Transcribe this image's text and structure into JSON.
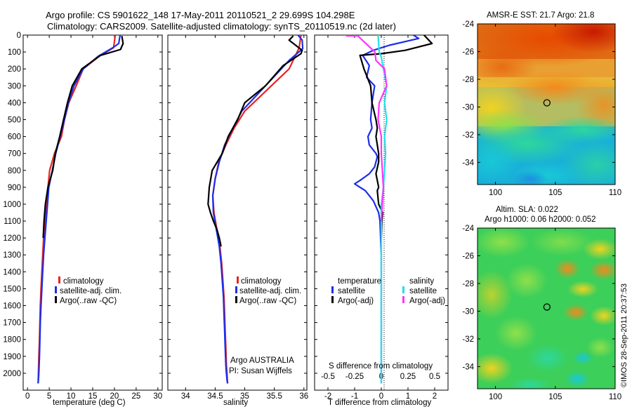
{
  "header": {
    "line1": "Argo profile: CS 5901622_148 17-May-2011 20110521_2 29.699S 104.298E",
    "line2": "Climatology: CARS2009. Satellite-adjusted climatology: synTS_20110519.nc (2d later)"
  },
  "colors": {
    "climatology": "#e8231e",
    "satellite_temperature": "#1c2ee8",
    "argo_temperature": "#000000",
    "satellite_salinity": "#22e0e8",
    "argo_salinity": "#ff33ff"
  },
  "chart_data": [
    {
      "type": "line",
      "ylabel": "",
      "xlabel": "temperature (deg C)",
      "xlim": [
        -1,
        31
      ],
      "ylim": [
        0,
        2100
      ],
      "y_reversed": true,
      "xticks": [
        "0",
        "5",
        "10",
        "15",
        "20",
        "25",
        "30"
      ],
      "yticks": [
        "0",
        "100",
        "200",
        "300",
        "400",
        "500",
        "600",
        "700",
        "800",
        "900",
        "1000",
        "1100",
        "1200",
        "1300",
        "1400",
        "1500",
        "1600",
        "1700",
        "1800",
        "1900",
        "2000"
      ],
      "legend": [
        "climatology",
        "satellite-adj. clim.",
        "Argo(..raw -QC)"
      ],
      "series": [
        {
          "name": "climatology",
          "color_key": "climatology",
          "x": [
            20.2,
            19.8,
            16.5,
            12.8,
            11.2,
            9.5,
            8.5,
            7.8,
            6.2,
            5.1,
            4.7,
            4.3,
            4.0,
            3.7,
            3.5,
            3.3,
            3.1,
            2.95,
            2.85,
            2.75,
            2.6,
            2.5,
            2.45
          ],
          "y": [
            0,
            75,
            125,
            200,
            300,
            400,
            500,
            600,
            700,
            800,
            900,
            1000,
            1100,
            1200,
            1300,
            1400,
            1500,
            1600,
            1700,
            1800,
            1900,
            2000,
            2060
          ]
        },
        {
          "name": "satellite-adj. clim.",
          "color_key": "satellite_temperature",
          "x": [
            21.3,
            21.0,
            19.6,
            16.3,
            12.8,
            10.7,
            9.4,
            8.5,
            7.5,
            6.5,
            5.7,
            4.9,
            4.6,
            4.3,
            4.0,
            3.7,
            3.5,
            3.3,
            3.1,
            2.95,
            2.85,
            2.75,
            2.6,
            2.5,
            2.45
          ],
          "y": [
            0,
            50,
            75,
            125,
            200,
            300,
            400,
            500,
            600,
            700,
            800,
            900,
            1000,
            1100,
            1200,
            1300,
            1400,
            1500,
            1600,
            1700,
            1800,
            1900,
            2000,
            2040,
            2060
          ]
        },
        {
          "name": "Argo(..raw -QC)",
          "color_key": "argo_temperature",
          "x": [
            21.7,
            22.0,
            21.4,
            16.8,
            12.5,
            10.3,
            9.2,
            8.3,
            7.4,
            6.4,
            5.8,
            4.7,
            4.1,
            3.8,
            3.6
          ],
          "y": [
            5,
            50,
            85,
            120,
            200,
            300,
            400,
            500,
            600,
            700,
            800,
            900,
            1000,
            1100,
            1200
          ]
        }
      ],
      "annotations": []
    },
    {
      "type": "line",
      "xlabel": "salinity",
      "xlim": [
        33.7,
        36.05
      ],
      "ylim": [
        0,
        2100
      ],
      "y_reversed": true,
      "xticks": [
        "34",
        "34.5",
        "35",
        "35.5",
        "36"
      ],
      "legend": [
        "climatology",
        "satellite-adj. clim.",
        "Argo(..raw -QC)"
      ],
      "series": [
        {
          "name": "climatology",
          "color_key": "climatology",
          "x": [
            35.95,
            35.92,
            35.75,
            35.3,
            35.0,
            34.82,
            34.68,
            34.56,
            34.5,
            34.46,
            34.48,
            34.53,
            34.58,
            34.61,
            34.63,
            34.65,
            34.66,
            34.67,
            34.68,
            34.69,
            34.7,
            34.71
          ],
          "y": [
            0,
            75,
            200,
            350,
            450,
            550,
            650,
            750,
            850,
            950,
            1050,
            1150,
            1250,
            1350,
            1450,
            1550,
            1650,
            1750,
            1850,
            1950,
            2000,
            2060
          ]
        },
        {
          "name": "satellite-adj. clim.",
          "color_key": "satellite_temperature",
          "x": [
            35.9,
            35.97,
            35.98,
            35.75,
            35.35,
            34.95,
            34.8,
            34.66,
            34.57,
            34.5,
            34.46,
            34.47,
            34.52,
            34.57,
            34.6,
            34.62,
            34.64,
            34.65,
            34.66,
            34.67,
            34.68,
            34.69,
            34.7,
            34.71
          ],
          "y": [
            0,
            30,
            80,
            150,
            300,
            450,
            550,
            650,
            750,
            850,
            950,
            1050,
            1150,
            1250,
            1350,
            1450,
            1550,
            1650,
            1750,
            1850,
            1950,
            2000,
            2040,
            2060
          ]
        },
        {
          "name": "Argo(..raw -QC)",
          "color_key": "argo_temperature",
          "x": [
            35.82,
            35.75,
            35.97,
            35.95,
            35.65,
            35.35,
            35.0,
            34.88,
            34.72,
            34.62,
            34.45,
            34.4,
            34.38,
            34.42,
            34.47,
            34.53,
            34.57,
            34.6
          ],
          "y": [
            5,
            30,
            90,
            110,
            180,
            300,
            400,
            500,
            600,
            700,
            800,
            900,
            1000,
            1050,
            1100,
            1150,
            1200,
            1250
          ]
        }
      ],
      "annotations": [
        "Argo AUSTRALIA",
        "PI: Susan Wijffels"
      ]
    },
    {
      "type": "line",
      "xlabel": "T difference from climatology",
      "x2label": "S difference from climatology",
      "xlim": [
        -2.5,
        2.5
      ],
      "x2lim": [
        -0.625,
        0.625
      ],
      "ylim": [
        0,
        2100
      ],
      "y_reversed": true,
      "xticks": [
        "-2",
        "-1",
        "0",
        "1",
        "2"
      ],
      "x2ticks": [
        "-0.5",
        "-0.25",
        "0",
        "0.25",
        "0.5"
      ],
      "legend_groups": [
        "temperature",
        "salinity"
      ],
      "legend": [
        "satellite",
        "Argo(-adj)",
        "satellite",
        "Argo(-adj)"
      ],
      "series": [
        {
          "name": "satellite",
          "group": "temperature",
          "color_key": "satellite_temperature",
          "x": [
            1.2,
            1.4,
            0.3,
            -0.3,
            -0.7,
            -0.45,
            -0.55,
            -0.25,
            -0.35,
            -0.4,
            -0.35,
            -0.5,
            -0.45,
            -0.2,
            -0.15,
            -0.2,
            -0.25,
            -0.35,
            -0.45,
            -0.8,
            -1.0,
            -0.6,
            -0.3,
            -0.1,
            -0.05,
            0.0,
            0.0
          ],
          "y": [
            0,
            20,
            60,
            90,
            120,
            180,
            250,
            300,
            400,
            500,
            550,
            600,
            650,
            700,
            720,
            750,
            780,
            800,
            820,
            860,
            880,
            920,
            980,
            1050,
            1100,
            1300,
            2060
          ]
        },
        {
          "name": "Argo(-adj)",
          "group": "temperature",
          "color_key": "argo_temperature",
          "x": [
            1.6,
            1.9,
            0.9,
            0.0,
            -0.8,
            -0.65,
            -0.4,
            -0.35,
            -0.2,
            -0.15,
            -0.2,
            -0.15,
            -0.1,
            -0.1,
            -0.2,
            -0.15,
            -0.1,
            -0.15,
            -0.1,
            0.05,
            0.02,
            0.0
          ],
          "y": [
            0,
            50,
            90,
            110,
            120,
            200,
            300,
            400,
            500,
            550,
            600,
            650,
            700,
            750,
            820,
            860,
            900,
            920,
            1000,
            1050,
            1100,
            1200
          ]
        },
        {
          "name": "satellite",
          "group": "salinity",
          "color_key": "satellite_salinity",
          "x": [
            -0.03,
            -0.02,
            0.0,
            0.02,
            0.05,
            0.03,
            0.05,
            0.03,
            0.04,
            0.03,
            0.02,
            0.0,
            0.0,
            0.0
          ],
          "y": [
            0,
            100,
            130,
            200,
            300,
            400,
            500,
            600,
            700,
            800,
            900,
            1000,
            1100,
            2060
          ]
        },
        {
          "name": "Argo(-adj)",
          "group": "salinity",
          "color_key": "argo_salinity",
          "x": [
            -0.33,
            -0.22,
            -0.06,
            -0.05,
            0.03,
            0.05,
            -0.02,
            -0.03,
            0.0,
            0.0,
            0.02,
            0.0
          ],
          "y": [
            5,
            5,
            100,
            150,
            200,
            300,
            400,
            500,
            600,
            700,
            900,
            1100
          ]
        }
      ],
      "annotations": []
    }
  ],
  "maps": [
    {
      "title": "AMSR-E SST: 21.7 Argo: 21.8",
      "subtitle": "",
      "xticks": [
        "100",
        "105",
        "110"
      ],
      "yticks": [
        "-24",
        "-26",
        "-28",
        "-30",
        "-32",
        "-34"
      ],
      "lon_range": [
        98.5,
        110
      ],
      "lat_range": [
        -35.6,
        -24
      ],
      "float_position": {
        "lon": 104.3,
        "lat": -29.7
      },
      "colormap": "jet"
    },
    {
      "title": "Altim. SLA: 0.022",
      "subtitle": "Argo h1000: 0.06 h2000: 0.052",
      "xticks": [
        "100",
        "105",
        "110"
      ],
      "yticks": [
        "-24",
        "-26",
        "-28",
        "-30",
        "-32",
        "-34"
      ],
      "lon_range": [
        98.5,
        110
      ],
      "lat_range": [
        -35.6,
        -24
      ],
      "float_position": {
        "lon": 104.3,
        "lat": -29.7
      },
      "colormap": "jet"
    }
  ],
  "credit": "©IMOS 28-Sep-2011 20:37:53"
}
